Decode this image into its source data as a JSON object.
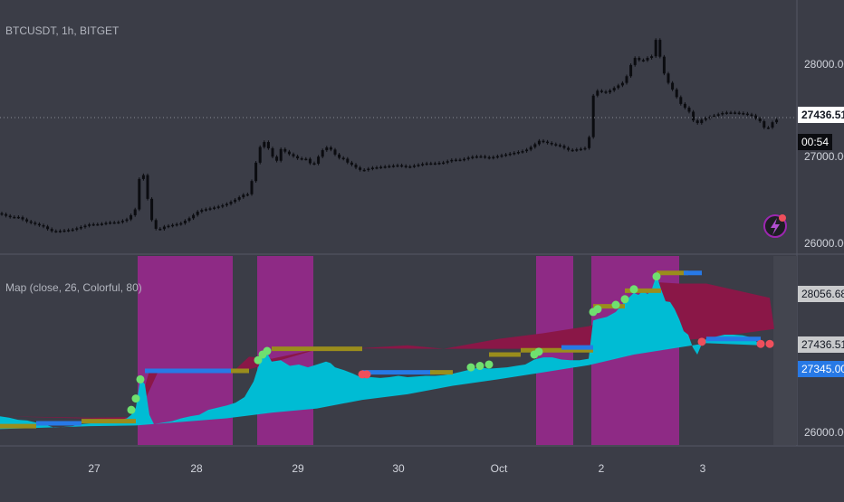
{
  "main_legend": "BTCUSDT, 1h, BITGET",
  "ind_legend": "Map (close, 26, Colorful, 80)",
  "colors": {
    "bg": "#3b3d47",
    "candle": "#0b0c10",
    "magenta": "#8e2a85",
    "crimson": "#8a1747",
    "cyan": "#00bcd4",
    "olive": "#9a8d1c",
    "blue": "#2779e6",
    "green_dot": "#6fe06f",
    "red_dot": "#ef4f5c"
  },
  "price_axis": {
    "labels": [
      "28000.00",
      "27000.00",
      "26000.00"
    ]
  },
  "price_tags": {
    "last": "27436.51",
    "countdown": "00:54"
  },
  "ind_axis": {
    "labels": [
      "26000.00"
    ],
    "tags": [
      {
        "text": "28056.68",
        "bg": "#c9cacc",
        "fg": "#131722"
      },
      {
        "text": "27436.51",
        "bg": "#c9cacc",
        "fg": "#131722"
      },
      {
        "text": "27345.00",
        "bg": "#2779e6",
        "fg": "#ffffff"
      }
    ]
  },
  "time_axis": {
    "labels": [
      "27",
      "28",
      "29",
      "30",
      "Oct",
      "2",
      "3"
    ]
  },
  "chart_data": [
    {
      "type": "candlestick",
      "title": "BTCUSDT, 1h, BITGET",
      "x": [
        "27",
        "28",
        "29",
        "30",
        "Oct",
        "2",
        "3"
      ],
      "ylim": [
        25950,
        28500
      ],
      "close_path": [
        [
          0,
          26370
        ],
        [
          10,
          26330
        ],
        [
          20,
          26330
        ],
        [
          30,
          26280
        ],
        [
          40,
          26250
        ],
        [
          50,
          26220
        ],
        [
          55,
          26180
        ],
        [
          60,
          26170
        ],
        [
          70,
          26180
        ],
        [
          80,
          26190
        ],
        [
          90,
          26220
        ],
        [
          100,
          26250
        ],
        [
          110,
          26250
        ],
        [
          120,
          26270
        ],
        [
          130,
          26270
        ],
        [
          140,
          26300
        ],
        [
          145,
          26350
        ],
        [
          150,
          26420
        ],
        [
          155,
          26820
        ],
        [
          160,
          26780
        ],
        [
          165,
          26400
        ],
        [
          170,
          26220
        ],
        [
          175,
          26180
        ],
        [
          180,
          26220
        ],
        [
          190,
          26240
        ],
        [
          200,
          26260
        ],
        [
          210,
          26320
        ],
        [
          220,
          26400
        ],
        [
          230,
          26420
        ],
        [
          240,
          26440
        ],
        [
          250,
          26470
        ],
        [
          260,
          26520
        ],
        [
          270,
          26580
        ],
        [
          275,
          26580
        ],
        [
          280,
          26800
        ],
        [
          285,
          27020
        ],
        [
          290,
          27180
        ],
        [
          295,
          27120
        ],
        [
          300,
          27020
        ],
        [
          305,
          26920
        ],
        [
          310,
          27080
        ],
        [
          320,
          27020
        ],
        [
          330,
          26970
        ],
        [
          340,
          26970
        ],
        [
          345,
          26880
        ],
        [
          350,
          26960
        ],
        [
          355,
          27050
        ],
        [
          360,
          27100
        ],
        [
          365,
          27080
        ],
        [
          370,
          27020
        ],
        [
          375,
          26980
        ],
        [
          380,
          26970
        ],
        [
          385,
          26920
        ],
        [
          390,
          26900
        ],
        [
          395,
          26860
        ],
        [
          400,
          26840
        ],
        [
          410,
          26870
        ],
        [
          420,
          26880
        ],
        [
          430,
          26890
        ],
        [
          440,
          26900
        ],
        [
          450,
          26880
        ],
        [
          460,
          26900
        ],
        [
          470,
          26920
        ],
        [
          480,
          26920
        ],
        [
          490,
          26930
        ],
        [
          500,
          26960
        ],
        [
          510,
          26960
        ],
        [
          520,
          26990
        ],
        [
          530,
          27000
        ],
        [
          540,
          26980
        ],
        [
          550,
          27000
        ],
        [
          560,
          27020
        ],
        [
          570,
          27040
        ],
        [
          580,
          27060
        ],
        [
          590,
          27120
        ],
        [
          595,
          27170
        ],
        [
          600,
          27160
        ],
        [
          610,
          27130
        ],
        [
          620,
          27110
        ],
        [
          625,
          27080
        ],
        [
          630,
          27060
        ],
        [
          640,
          27080
        ],
        [
          645,
          27080
        ],
        [
          650,
          27110
        ],
        [
          655,
          27660
        ],
        [
          660,
          27720
        ],
        [
          670,
          27700
        ],
        [
          680,
          27760
        ],
        [
          690,
          27820
        ],
        [
          695,
          27950
        ],
        [
          700,
          28090
        ],
        [
          705,
          28060
        ],
        [
          710,
          28050
        ],
        [
          715,
          28080
        ],
        [
          720,
          28100
        ],
        [
          725,
          28300
        ],
        [
          730,
          28050
        ],
        [
          735,
          27860
        ],
        [
          740,
          27780
        ],
        [
          745,
          27700
        ],
        [
          750,
          27600
        ],
        [
          755,
          27540
        ],
        [
          760,
          27520
        ],
        [
          765,
          27400
        ],
        [
          770,
          27360
        ],
        [
          775,
          27400
        ],
        [
          780,
          27420
        ],
        [
          790,
          27450
        ],
        [
          800,
          27480
        ],
        [
          810,
          27480
        ],
        [
          820,
          27470
        ],
        [
          830,
          27450
        ],
        [
          840,
          27380
        ],
        [
          845,
          27300
        ],
        [
          850,
          27320
        ],
        [
          855,
          27400
        ]
      ]
    },
    {
      "type": "area",
      "title": "Map (close, 26, Colorful, 80)",
      "x": [
        "27",
        "28",
        "29",
        "30",
        "Oct",
        "2",
        "3"
      ],
      "ylim": [
        25950,
        28500
      ],
      "cyan_path": [
        [
          0,
          26330
        ],
        [
          10,
          26310
        ],
        [
          20,
          26280
        ],
        [
          30,
          26270
        ],
        [
          40,
          26240
        ],
        [
          50,
          26210
        ],
        [
          60,
          26170
        ],
        [
          70,
          26180
        ],
        [
          80,
          26190
        ],
        [
          90,
          26220
        ],
        [
          100,
          26230
        ],
        [
          110,
          26250
        ],
        [
          120,
          26270
        ],
        [
          130,
          26270
        ],
        [
          140,
          26300
        ],
        [
          145,
          26350
        ],
        [
          150,
          26450
        ],
        [
          155,
          26860
        ],
        [
          160,
          26780
        ],
        [
          165,
          26350
        ],
        [
          170,
          26220
        ],
        [
          180,
          26240
        ],
        [
          190,
          26260
        ],
        [
          200,
          26300
        ],
        [
          210,
          26330
        ],
        [
          220,
          26350
        ],
        [
          230,
          26420
        ],
        [
          240,
          26450
        ],
        [
          250,
          26480
        ],
        [
          260,
          26520
        ],
        [
          270,
          26600
        ],
        [
          280,
          26820
        ],
        [
          285,
          27020
        ],
        [
          290,
          27180
        ],
        [
          295,
          27220
        ],
        [
          300,
          27100
        ],
        [
          310,
          27120
        ],
        [
          320,
          27040
        ],
        [
          330,
          27060
        ],
        [
          340,
          27020
        ],
        [
          350,
          27060
        ],
        [
          360,
          27100
        ],
        [
          365,
          27080
        ],
        [
          370,
          27020
        ],
        [
          380,
          26980
        ],
        [
          390,
          26930
        ],
        [
          400,
          26870
        ],
        [
          410,
          26880
        ],
        [
          420,
          26870
        ],
        [
          430,
          26880
        ],
        [
          440,
          26900
        ],
        [
          450,
          26880
        ],
        [
          460,
          26890
        ],
        [
          470,
          26900
        ],
        [
          480,
          26900
        ],
        [
          490,
          26910
        ],
        [
          500,
          26930
        ],
        [
          510,
          26960
        ],
        [
          520,
          26990
        ],
        [
          530,
          27020
        ],
        [
          540,
          27000
        ],
        [
          550,
          27010
        ],
        [
          560,
          27020
        ],
        [
          570,
          27040
        ],
        [
          580,
          27060
        ],
        [
          590,
          27130
        ],
        [
          600,
          27160
        ],
        [
          610,
          27160
        ],
        [
          620,
          27130
        ],
        [
          630,
          27120
        ],
        [
          640,
          27120
        ],
        [
          650,
          27140
        ],
        [
          655,
          27680
        ],
        [
          660,
          27700
        ],
        [
          670,
          27730
        ],
        [
          680,
          27800
        ],
        [
          690,
          27950
        ],
        [
          700,
          28070
        ],
        [
          705,
          28040
        ],
        [
          710,
          28100
        ],
        [
          715,
          28050
        ],
        [
          720,
          28130
        ],
        [
          725,
          28320
        ],
        [
          730,
          28120
        ],
        [
          735,
          27950
        ],
        [
          740,
          27940
        ],
        [
          745,
          27840
        ],
        [
          750,
          27700
        ],
        [
          755,
          27530
        ],
        [
          760,
          27480
        ],
        [
          765,
          27300
        ],
        [
          770,
          27200
        ],
        [
          775,
          27350
        ],
        [
          780,
          27420
        ],
        [
          790,
          27450
        ],
        [
          800,
          27480
        ],
        [
          810,
          27480
        ],
        [
          820,
          27470
        ],
        [
          830,
          27440
        ],
        [
          840,
          27330
        ]
      ],
      "baseline_path": [
        [
          0,
          26150
        ],
        [
          50,
          26170
        ],
        [
          100,
          26190
        ],
        [
          150,
          26200
        ],
        [
          200,
          26250
        ],
        [
          250,
          26300
        ],
        [
          300,
          26380
        ],
        [
          350,
          26440
        ],
        [
          400,
          26560
        ],
        [
          450,
          26640
        ],
        [
          500,
          26760
        ],
        [
          550,
          26850
        ],
        [
          600,
          26950
        ],
        [
          650,
          27050
        ],
        [
          700,
          27200
        ],
        [
          750,
          27300
        ],
        [
          780,
          27360
        ]
      ],
      "band_path": [
        [
          0,
          26330
        ],
        [
          100,
          26310
        ],
        [
          150,
          26320
        ],
        [
          165,
          26970
        ],
        [
          260,
          26990
        ],
        [
          275,
          27170
        ],
        [
          300,
          27140
        ],
        [
          355,
          27290
        ],
        [
          400,
          27290
        ],
        [
          450,
          27330
        ],
        [
          490,
          27280
        ],
        [
          550,
          27420
        ],
        [
          600,
          27500
        ],
        [
          650,
          27600
        ],
        [
          700,
          27800
        ],
        [
          725,
          28220
        ],
        [
          750,
          28200
        ],
        [
          780,
          28200
        ],
        [
          850,
          28000
        ],
        [
          855,
          27560
        ],
        [
          780,
          27430
        ],
        [
          650,
          27280
        ],
        [
          480,
          27280
        ],
        [
          355,
          27290
        ],
        [
          275,
          26990
        ],
        [
          175,
          26970
        ],
        [
          150,
          26280
        ],
        [
          0,
          26330
        ]
      ],
      "step_lines": [
        {
          "color": "olive",
          "y": 26190,
          "x0": 0,
          "x1": 40
        },
        {
          "color": "blue",
          "y": 26230,
          "x0": 40,
          "x1": 90
        },
        {
          "color": "olive",
          "y": 26260,
          "x0": 90,
          "x1": 150
        },
        {
          "color": "blue",
          "y": 26970,
          "x0": 160,
          "x1": 265
        },
        {
          "color": "olive",
          "y": 26970,
          "x0": 255,
          "x1": 275
        },
        {
          "color": "olive",
          "y": 27280,
          "x0": 300,
          "x1": 400
        },
        {
          "color": "blue",
          "y": 26950,
          "x0": 400,
          "x1": 480
        },
        {
          "color": "olive",
          "y": 26950,
          "x0": 475,
          "x1": 500
        },
        {
          "color": "olive",
          "y": 27200,
          "x0": 540,
          "x1": 575
        },
        {
          "color": "olive",
          "y": 27260,
          "x0": 575,
          "x1": 655
        },
        {
          "color": "blue",
          "y": 27300,
          "x0": 620,
          "x1": 655
        },
        {
          "color": "olive",
          "y": 27880,
          "x0": 655,
          "x1": 690
        },
        {
          "color": "olive",
          "y": 28100,
          "x0": 690,
          "x1": 730
        },
        {
          "color": "olive",
          "y": 28350,
          "x0": 725,
          "x1": 760
        },
        {
          "color": "blue",
          "y": 28350,
          "x0": 755,
          "x1": 775
        },
        {
          "color": "blue",
          "y": 27420,
          "x0": 780,
          "x1": 840
        }
      ],
      "green_dots": [
        [
          145,
          26420
        ],
        [
          150,
          26580
        ],
        [
          155,
          26850
        ],
        [
          285,
          27120
        ],
        [
          290,
          27200
        ],
        [
          295,
          27250
        ],
        [
          520,
          27020
        ],
        [
          530,
          27040
        ],
        [
          540,
          27060
        ],
        [
          590,
          27200
        ],
        [
          595,
          27240
        ],
        [
          655,
          27800
        ],
        [
          660,
          27840
        ],
        [
          680,
          27900
        ],
        [
          690,
          27980
        ],
        [
          700,
          28120
        ],
        [
          725,
          28300
        ]
      ],
      "red_dots": [
        [
          400,
          26920
        ],
        [
          405,
          26920
        ],
        [
          775,
          27380
        ],
        [
          840,
          27350
        ],
        [
          850,
          27350
        ]
      ]
    }
  ]
}
